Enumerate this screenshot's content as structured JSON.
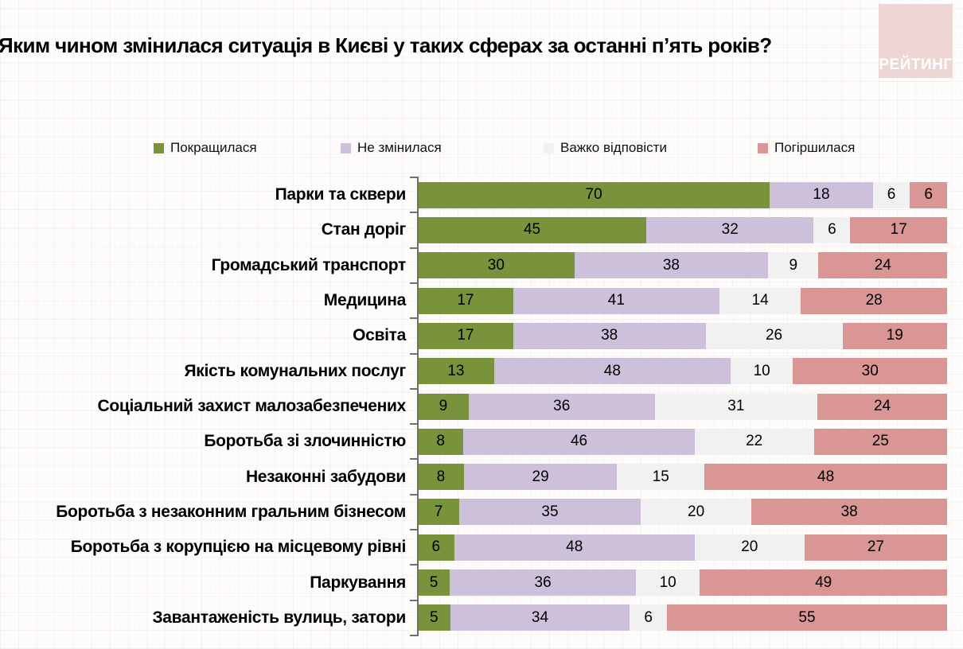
{
  "header": {
    "title": "Яким чином змінилася ситуація в Києві у таких сферах за останні п’ять років?",
    "logo_text": "РЕЙТИНГ",
    "logo_bg": "#edd6d3"
  },
  "chart_data": {
    "type": "bar",
    "subtype": "horizontal-100-stacked",
    "title": "Яким чином змінилася ситуація в Києві у таких сферах за останні п’ять років?",
    "unit": "percent",
    "legend_position": "top",
    "value_labels": "inside-center",
    "grid": false,
    "categories": [
      "Парки та сквери",
      "Стан доріг",
      "Громадський транспорт",
      "Медицина",
      "Освіта",
      "Якість комунальних послуг",
      "Соціальний захист малозабезпечених",
      "Боротьба зі злочинністю",
      "Незаконні забудови",
      "Боротьба з незаконним гральним бізнесом",
      "Боротьба з корупцією на місцевому рівні",
      "Паркування",
      "Завантаженість вулиць, затори"
    ],
    "series": [
      {
        "key": "improved",
        "name": "Покращилася",
        "color": "#78933C",
        "values": [
          70,
          45,
          30,
          17,
          17,
          13,
          9,
          8,
          8,
          7,
          6,
          5,
          5
        ]
      },
      {
        "key": "unchanged",
        "name": "Не змінилася",
        "color": "#CCC0DA",
        "values": [
          18,
          32,
          38,
          41,
          38,
          48,
          36,
          46,
          29,
          35,
          48,
          36,
          34
        ]
      },
      {
        "key": "hard-to-say",
        "name": "Важко відповісти",
        "color": "#F2F1F1",
        "values": [
          6,
          6,
          9,
          14,
          26,
          10,
          31,
          22,
          15,
          20,
          20,
          10,
          6
        ]
      },
      {
        "key": "worsened",
        "name": "Погіршилася",
        "color": "#D99694",
        "values": [
          6,
          17,
          24,
          28,
          19,
          30,
          24,
          25,
          48,
          38,
          27,
          49,
          55
        ]
      }
    ],
    "axis": {
      "category_axis_color": "#6f6f6f",
      "ticks": "category-boundaries"
    }
  }
}
